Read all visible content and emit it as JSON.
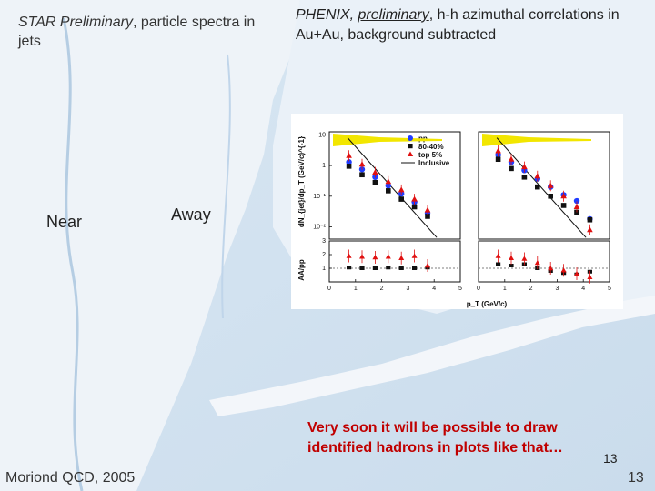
{
  "slide": {
    "star_caption": {
      "italic": "STAR Preliminary",
      "rest": ", particle spectra in jets"
    },
    "phenix_caption": {
      "p1": "PHENIX, ",
      "p2": "preliminary",
      "p3": ", h-h azimuthal correlations in Au+Au, background subtracted"
    },
    "near_label": "Near",
    "away_label": "Away",
    "note": "Very soon it will be possible to draw identified hadrons in plots like that…",
    "small_number": "13",
    "footer_left": "Moriond QCD, 2005",
    "footer_right": "13"
  },
  "colors": {
    "pp": "#1f3cff",
    "cent_80_40": "#111111",
    "top5": "#e01010",
    "inclusive": "#111111",
    "band": "#f2e600",
    "note_text": "#c00000"
  },
  "chart_data": {
    "type": "scatter",
    "panels": [
      "near",
      "away"
    ],
    "legend": [
      "pp",
      "80-40%",
      "top 5%",
      "Inclusive"
    ],
    "upper": {
      "ylabel": "dN_{jet}/dp_T (GeV/c)^{-1}",
      "log": true,
      "yticks": [
        "10",
        "1",
        "10⁻¹",
        "10⁻²"
      ],
      "near": {
        "pp": [
          [
            0.75,
            1.3
          ],
          [
            1.25,
            0.75
          ],
          [
            1.75,
            0.42
          ],
          [
            2.25,
            0.22
          ],
          [
            2.75,
            0.12
          ],
          [
            3.25,
            0.065
          ],
          [
            3.75,
            0.028
          ]
        ],
        "cent": [
          [
            0.75,
            0.95
          ],
          [
            1.25,
            0.5
          ],
          [
            1.75,
            0.28
          ],
          [
            2.25,
            0.15
          ],
          [
            2.75,
            0.08
          ],
          [
            3.25,
            0.045
          ],
          [
            3.75,
            0.022
          ]
        ],
        "top5": [
          [
            0.75,
            2.1
          ],
          [
            1.25,
            1.1
          ],
          [
            1.75,
            0.6
          ],
          [
            2.25,
            0.3
          ],
          [
            2.75,
            0.16
          ],
          [
            3.25,
            0.08
          ],
          [
            3.75,
            0.035
          ]
        ]
      },
      "away": {
        "pp": [
          [
            0.75,
            2.2
          ],
          [
            1.25,
            1.3
          ],
          [
            1.75,
            0.7
          ],
          [
            2.25,
            0.37
          ],
          [
            2.75,
            0.2
          ],
          [
            3.25,
            0.11
          ],
          [
            3.75,
            0.07
          ],
          [
            4.25,
            0.018
          ]
        ],
        "cent": [
          [
            0.75,
            1.6
          ],
          [
            1.25,
            0.8
          ],
          [
            1.75,
            0.42
          ],
          [
            2.25,
            0.2
          ],
          [
            2.75,
            0.1
          ],
          [
            3.25,
            0.05
          ],
          [
            3.75,
            0.03
          ],
          [
            4.25,
            0.017
          ]
        ],
        "top5": [
          [
            0.75,
            3.0
          ],
          [
            1.25,
            1.6
          ],
          [
            1.75,
            0.9
          ],
          [
            2.25,
            0.45
          ],
          [
            2.75,
            0.22
          ],
          [
            3.25,
            0.1
          ],
          [
            3.75,
            0.045
          ],
          [
            4.25,
            0.008
          ]
        ]
      }
    },
    "lower": {
      "ylabel": "AA/pp",
      "yticks": [
        "1",
        "2",
        "3"
      ],
      "ylim": [
        0,
        3
      ],
      "near": {
        "cent": [
          [
            0.75,
            1.05
          ],
          [
            1.25,
            1.0
          ],
          [
            1.75,
            1.0
          ],
          [
            2.25,
            1.05
          ],
          [
            2.75,
            1.0
          ],
          [
            3.25,
            1.0
          ],
          [
            3.75,
            1.05
          ]
        ],
        "top5": [
          [
            0.75,
            1.9
          ],
          [
            1.25,
            1.85
          ],
          [
            1.75,
            1.8
          ],
          [
            2.25,
            1.85
          ],
          [
            2.75,
            1.75
          ],
          [
            3.25,
            1.9
          ],
          [
            3.75,
            1.2
          ]
        ]
      },
      "away": {
        "cent": [
          [
            0.75,
            1.3
          ],
          [
            1.25,
            1.2
          ],
          [
            1.75,
            1.3
          ],
          [
            2.25,
            1.0
          ],
          [
            2.75,
            0.8
          ],
          [
            3.25,
            0.65
          ],
          [
            3.75,
            0.55
          ],
          [
            4.25,
            0.75
          ]
        ],
        "top5": [
          [
            0.75,
            1.9
          ],
          [
            1.25,
            1.75
          ],
          [
            1.75,
            1.7
          ],
          [
            2.25,
            1.4
          ],
          [
            2.75,
            1.0
          ],
          [
            3.25,
            0.85
          ],
          [
            3.75,
            0.6
          ],
          [
            4.25,
            0.35
          ]
        ]
      }
    },
    "xlabel": "p_T (GeV/c)",
    "xticks": [
      "0",
      "1",
      "2",
      "3",
      "4",
      "5"
    ],
    "xlim": [
      0,
      5
    ]
  }
}
